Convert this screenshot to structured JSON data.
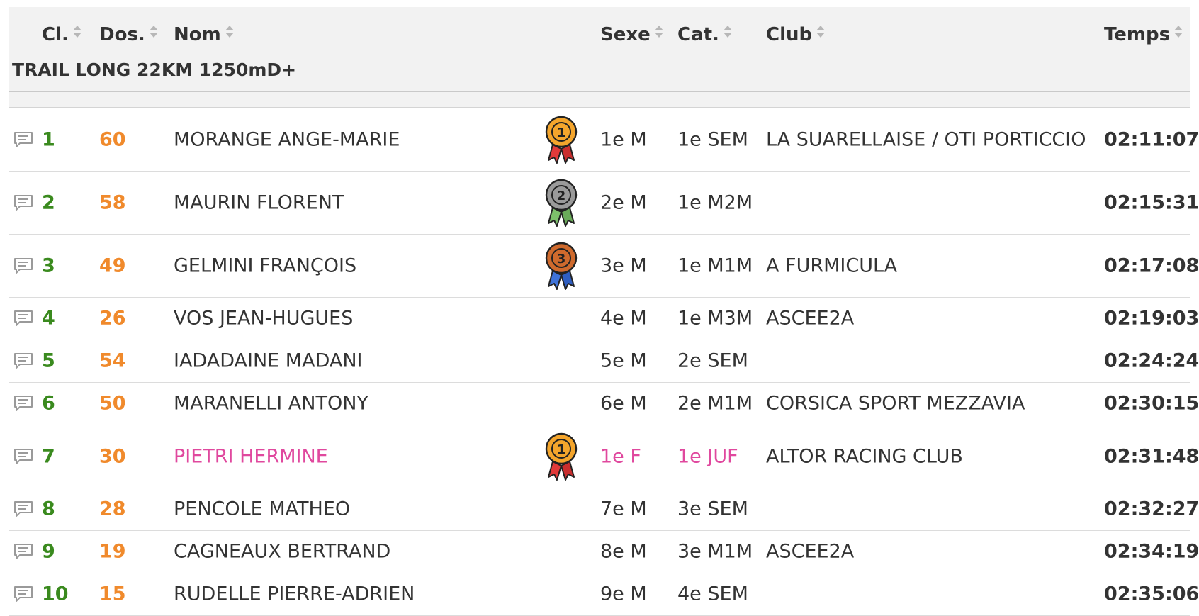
{
  "headers": {
    "cl": "Cl.",
    "dos": "Dos.",
    "nom": "Nom",
    "sexe": "Sexe",
    "cat": "Cat.",
    "club": "Club",
    "temps": "Temps"
  },
  "section_title": "TRAIL LONG 22KM 1250mD+",
  "colors": {
    "rank": "#3a8a1e",
    "bib": "#f08a2c",
    "female": "#e0489e",
    "gold": "#f4a52c",
    "silver": "#9a9a9a",
    "bronze": "#cf6a2d"
  },
  "rows": [
    {
      "rank": "1",
      "bib": "60",
      "name": "MORANGE ANGE-MARIE",
      "medal": "1",
      "medal_icon": "gold-medal-icon",
      "sexe": "1e M",
      "cat": "1e SEM",
      "club": "LA SUARELLAISE / OTI PORTICCIO",
      "time": "02:11:07",
      "female": false
    },
    {
      "rank": "2",
      "bib": "58",
      "name": "MAURIN FLORENT",
      "medal": "2",
      "medal_icon": "silver-medal-icon",
      "sexe": "2e M",
      "cat": "1e M2M",
      "club": "",
      "time": "02:15:31",
      "female": false
    },
    {
      "rank": "3",
      "bib": "49",
      "name": "GELMINI FRANÇOIS",
      "medal": "3",
      "medal_icon": "bronze-medal-icon",
      "sexe": "3e M",
      "cat": "1e M1M",
      "club": "A FURMICULA",
      "time": "02:17:08",
      "female": false
    },
    {
      "rank": "4",
      "bib": "26",
      "name": "VOS JEAN-HUGUES",
      "medal": "",
      "sexe": "4e M",
      "cat": "1e M3M",
      "club": "ASCEE2A",
      "time": "02:19:03",
      "female": false
    },
    {
      "rank": "5",
      "bib": "54",
      "name": "IADADAINE MADANI",
      "medal": "",
      "sexe": "5e M",
      "cat": "2e SEM",
      "club": "",
      "time": "02:24:24",
      "female": false
    },
    {
      "rank": "6",
      "bib": "50",
      "name": "MARANELLI ANTONY",
      "medal": "",
      "sexe": "6e M",
      "cat": "2e M1M",
      "club": "CORSICA SPORT MEZZAVIA",
      "time": "02:30:15",
      "female": false
    },
    {
      "rank": "7",
      "bib": "30",
      "name": "PIETRI HERMINE",
      "medal": "1",
      "medal_icon": "gold-medal-icon",
      "sexe": "1e F",
      "cat": "1e JUF",
      "club": "ALTOR RACING CLUB",
      "time": "02:31:48",
      "female": true
    },
    {
      "rank": "8",
      "bib": "28",
      "name": "PENCOLE MATHEO",
      "medal": "",
      "sexe": "7e M",
      "cat": "3e SEM",
      "club": "",
      "time": "02:32:27",
      "female": false
    },
    {
      "rank": "9",
      "bib": "19",
      "name": "CAGNEAUX BERTRAND",
      "medal": "",
      "sexe": "8e M",
      "cat": "3e M1M",
      "club": "ASCEE2A",
      "time": "02:34:19",
      "female": false
    },
    {
      "rank": "10",
      "bib": "15",
      "name": "RUDELLE PIERRE-ADRIEN",
      "medal": "",
      "sexe": "9e M",
      "cat": "4e SEM",
      "club": "",
      "time": "02:35:06",
      "female": false
    }
  ]
}
